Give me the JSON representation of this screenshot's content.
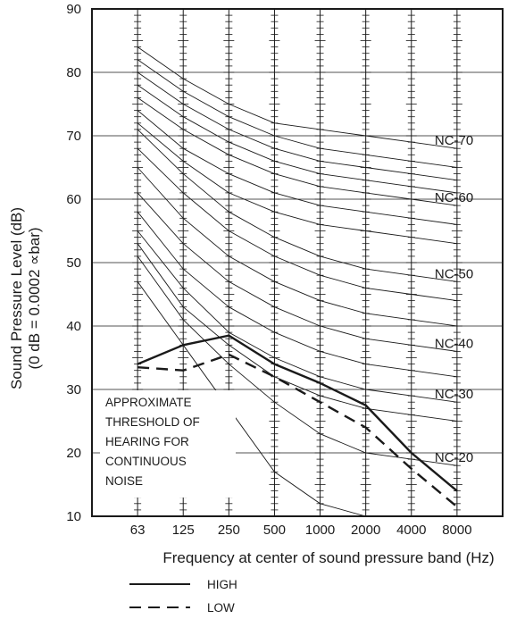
{
  "chart_data": {
    "type": "line",
    "title": "",
    "xlabel": "Frequency at center of sound pressure band (Hz)",
    "ylabel": "Sound Pressure Level (dB)",
    "ylabel_sub": "(0 dB = 0.0002 ∝bar)",
    "categories": [
      "63",
      "125",
      "250",
      "500",
      "1000",
      "2000",
      "4000",
      "8000"
    ],
    "ylim": [
      10,
      90
    ],
    "yticks": [
      10,
      20,
      30,
      40,
      50,
      60,
      70,
      80,
      90
    ],
    "grid": true,
    "nc_curves": [
      {
        "label": "NC-70",
        "values": [
          84,
          79,
          75,
          72,
          71,
          70,
          69,
          68
        ]
      },
      {
        "label": "",
        "values": [
          82,
          77,
          73,
          70,
          68,
          67,
          66,
          65
        ]
      },
      {
        "label": "",
        "values": [
          80,
          75,
          71,
          68,
          66,
          65,
          64,
          63
        ]
      },
      {
        "label": "",
        "values": [
          78,
          73,
          69,
          66,
          64,
          63,
          62,
          61
        ]
      },
      {
        "label": "NC-60",
        "values": [
          76,
          71,
          67,
          64,
          62,
          61,
          60,
          59
        ]
      },
      {
        "label": "",
        "values": [
          74,
          68,
          64,
          61,
          59,
          58,
          57,
          56
        ]
      },
      {
        "label": "",
        "values": [
          72,
          66,
          61,
          58,
          56,
          55,
          54,
          53
        ]
      },
      {
        "label": "NC-50",
        "values": [
          71,
          64,
          58,
          54,
          51,
          49,
          48,
          47
        ]
      },
      {
        "label": "",
        "values": [
          68,
          61,
          55,
          51,
          48,
          46,
          45,
          44
        ]
      },
      {
        "label": "",
        "values": [
          65,
          57,
          51,
          47,
          44,
          42,
          41,
          40
        ]
      },
      {
        "label": "NC-40",
        "values": [
          61,
          53,
          47,
          43,
          40,
          38,
          37,
          36
        ]
      },
      {
        "label": "",
        "values": [
          58,
          49,
          43,
          39,
          36,
          34,
          33,
          32
        ]
      },
      {
        "label": "NC-30",
        "values": [
          55,
          46,
          39,
          35,
          32,
          30,
          29,
          28
        ]
      },
      {
        "label": "",
        "values": [
          53,
          43,
          37,
          32,
          29,
          27,
          26,
          25
        ]
      },
      {
        "label": "NC-20",
        "values": [
          51,
          41,
          34,
          28,
          23,
          20,
          19,
          18
        ]
      },
      {
        "label": "",
        "values": [
          47,
          37,
          27,
          17,
          12,
          10,
          10,
          10
        ]
      }
    ],
    "series": [
      {
        "name": "HIGH",
        "style": "solid",
        "values": [
          34,
          37,
          38.5,
          34,
          31,
          27.5,
          20,
          14
        ]
      },
      {
        "name": "LOW",
        "style": "dashed",
        "values": [
          33.5,
          33,
          35.5,
          32,
          28,
          24,
          17.5,
          11.5
        ]
      }
    ],
    "annotation": [
      "APPROXIMATE",
      "THRESHOLD OF",
      "HEARING FOR",
      "CONTINUOUS",
      "NOISE"
    ],
    "legend_position": "bottom-center",
    "colors": {
      "line": "#1a1a1a",
      "background": "#ffffff"
    }
  }
}
